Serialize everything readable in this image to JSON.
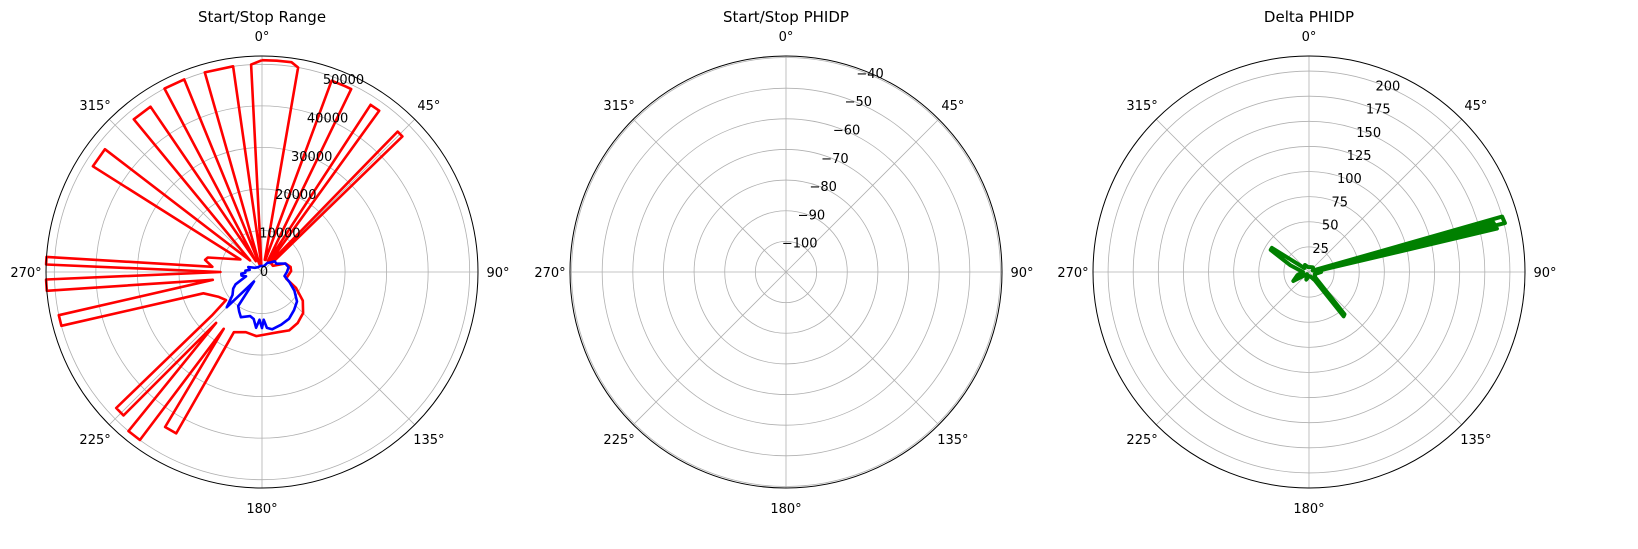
{
  "chart_data": [
    {
      "type": "polar-line",
      "title": "Start/Stop Range",
      "theta_labels": [
        "0°",
        "45°",
        "90°",
        "135°",
        "180°",
        "225°",
        "270°",
        "315°"
      ],
      "theta_direction": "clockwise",
      "theta_zero": "top",
      "rlim": [
        0,
        52000
      ],
      "r_ticks": [
        0,
        10000,
        20000,
        30000,
        40000,
        50000
      ],
      "r_tick_labels": [
        "0",
        "10000",
        "20000",
        "30000",
        "40000",
        "50000"
      ],
      "r_label_angle_deg": 22.5,
      "grid": true,
      "series": [
        {
          "color": "#ff0000",
          "points": [
            [
              0,
              51000
            ],
            [
              4,
              51000
            ],
            [
              8,
              51000
            ],
            [
              10,
              50000
            ],
            [
              13,
              3000
            ],
            [
              16,
              3000
            ],
            [
              20,
              49000
            ],
            [
              24,
              49000
            ],
            [
              26,
              49000
            ],
            [
              28,
              3000
            ],
            [
              31,
              3000
            ],
            [
              33,
              48000
            ],
            [
              36,
              48000
            ],
            [
              38,
              3000
            ],
            [
              41,
              3000
            ],
            [
              44,
              47000
            ],
            [
              46,
              47000
            ],
            [
              48,
              3000
            ],
            [
              60,
              3000
            ],
            [
              70,
              6000
            ],
            [
              80,
              7000
            ],
            [
              88,
              7000
            ],
            [
              95,
              6500
            ],
            [
              105,
              6000
            ],
            [
              115,
              9000
            ],
            [
              125,
              12000
            ],
            [
              135,
              14000
            ],
            [
              145,
              15000
            ],
            [
              155,
              15500
            ],
            [
              165,
              15000
            ],
            [
              175,
              15000
            ],
            [
              185,
              15500
            ],
            [
              195,
              15000
            ],
            [
              205,
              16000
            ],
            [
              208,
              44000
            ],
            [
              212,
              44000
            ],
            [
              214,
              16500
            ],
            [
              216,
              50000
            ],
            [
              220,
              50000
            ],
            [
              222,
              16500
            ],
            [
              224,
              48000
            ],
            [
              227,
              48000
            ],
            [
              229,
              16000
            ],
            [
              232,
              11000
            ],
            [
              240,
              12000
            ],
            [
              250,
              15000
            ],
            [
              255,
              50000
            ],
            [
              258,
              50000
            ],
            [
              261,
              12000
            ],
            [
              265,
              52000
            ],
            [
              268,
              52000
            ],
            [
              270,
              10000
            ],
            [
              272,
              52000
            ],
            [
              274,
              52000
            ],
            [
              276,
              12000
            ],
            [
              282,
              14000
            ],
            [
              285,
              13500
            ],
            [
              300,
              6000
            ],
            [
              302,
              48000
            ],
            [
              308,
              48000
            ],
            [
              314,
              4000
            ],
            [
              320,
              48000
            ],
            [
              326,
              48000
            ],
            [
              330,
              3000
            ],
            [
              332,
              50000
            ],
            [
              338,
              50000
            ],
            [
              342,
              2000
            ],
            [
              344,
              50000
            ],
            [
              352,
              50000
            ],
            [
              355,
              2000
            ],
            [
              357,
              50000
            ],
            [
              360,
              51000
            ]
          ]
        },
        {
          "color": "#0000ff",
          "points": [
            [
              0,
              1500
            ],
            [
              20,
              1500
            ],
            [
              30,
              2500
            ],
            [
              40,
              3000
            ],
            [
              50,
              4000
            ],
            [
              60,
              4000
            ],
            [
              70,
              6000
            ],
            [
              80,
              6500
            ],
            [
              90,
              6000
            ],
            [
              100,
              5500
            ],
            [
              110,
              7000
            ],
            [
              120,
              9000
            ],
            [
              130,
              11000
            ],
            [
              140,
              12000
            ],
            [
              150,
              13000
            ],
            [
              160,
              13500
            ],
            [
              170,
              14000
            ],
            [
              175,
              13500
            ],
            [
              178,
              11500
            ],
            [
              180,
              13500
            ],
            [
              183,
              11500
            ],
            [
              186,
              13500
            ],
            [
              190,
              11500
            ],
            [
              195,
              11000
            ],
            [
              205,
              12000
            ],
            [
              210,
              11000
            ],
            [
              215,
              10000
            ],
            [
              220,
              3000
            ],
            [
              225,
              12000
            ],
            [
              232,
              9000
            ],
            [
              240,
              8000
            ],
            [
              245,
              7000
            ],
            [
              255,
              4000
            ],
            [
              260,
              5000
            ],
            [
              265,
              5000
            ],
            [
              268,
              4000
            ],
            [
              275,
              4000
            ],
            [
              280,
              3000
            ],
            [
              290,
              3500
            ],
            [
              300,
              2000
            ],
            [
              320,
              1500
            ],
            [
              340,
              1500
            ],
            [
              360,
              1500
            ]
          ]
        }
      ]
    },
    {
      "type": "polar-line",
      "title": "Start/Stop PHIDP",
      "theta_labels": [
        "0°",
        "45°",
        "90°",
        "135°",
        "180°",
        "225°",
        "270°",
        "315°"
      ],
      "theta_direction": "clockwise",
      "theta_zero": "top",
      "rlim": [
        -110,
        -39.5
      ],
      "r_ticks": [
        -100,
        -90,
        -80,
        -70,
        -60,
        -50,
        -40
      ],
      "r_tick_labels": [
        "−100",
        "−90",
        "−80",
        "−70",
        "−60",
        "−50",
        "−40"
      ],
      "r_label_angle_deg": 22.5,
      "grid": true,
      "series": []
    },
    {
      "type": "polar-line",
      "title": "Delta PHIDP",
      "theta_labels": [
        "0°",
        "45°",
        "90°",
        "135°",
        "180°",
        "225°",
        "270°",
        "315°"
      ],
      "theta_direction": "clockwise",
      "theta_zero": "top",
      "rlim": [
        0,
        215
      ],
      "r_ticks": [
        0,
        25,
        50,
        75,
        100,
        125,
        150,
        175,
        200
      ],
      "r_tick_labels": [
        "",
        "25",
        "50",
        "75",
        "100",
        "125",
        "150",
        "175",
        "200"
      ],
      "r_label_angle_deg": 22.5,
      "grid": true,
      "series": [
        {
          "color": "#008000",
          "points": [
            [
              0,
              5
            ],
            [
              40,
              6
            ],
            [
              60,
              5
            ],
            [
              70,
              4
            ],
            [
              74,
              200
            ],
            [
              76,
              201
            ],
            [
              80,
              8
            ],
            [
              75,
              190
            ],
            [
              77,
              192
            ],
            [
              82,
              10
            ],
            [
              90,
              12
            ],
            [
              110,
              6
            ],
            [
              130,
              8
            ],
            [
              140,
              55
            ],
            [
              142,
              56
            ],
            [
              145,
              10
            ],
            [
              160,
              5
            ],
            [
              180,
              4
            ],
            [
              200,
              8
            ],
            [
              225,
              3
            ],
            [
              240,
              18
            ],
            [
              255,
              12
            ],
            [
              270,
              6
            ],
            [
              290,
              20
            ],
            [
              300,
              44
            ],
            [
              303,
              44
            ],
            [
              310,
              6
            ],
            [
              330,
              8
            ],
            [
              350,
              5
            ],
            [
              360,
              5
            ]
          ]
        }
      ]
    }
  ]
}
